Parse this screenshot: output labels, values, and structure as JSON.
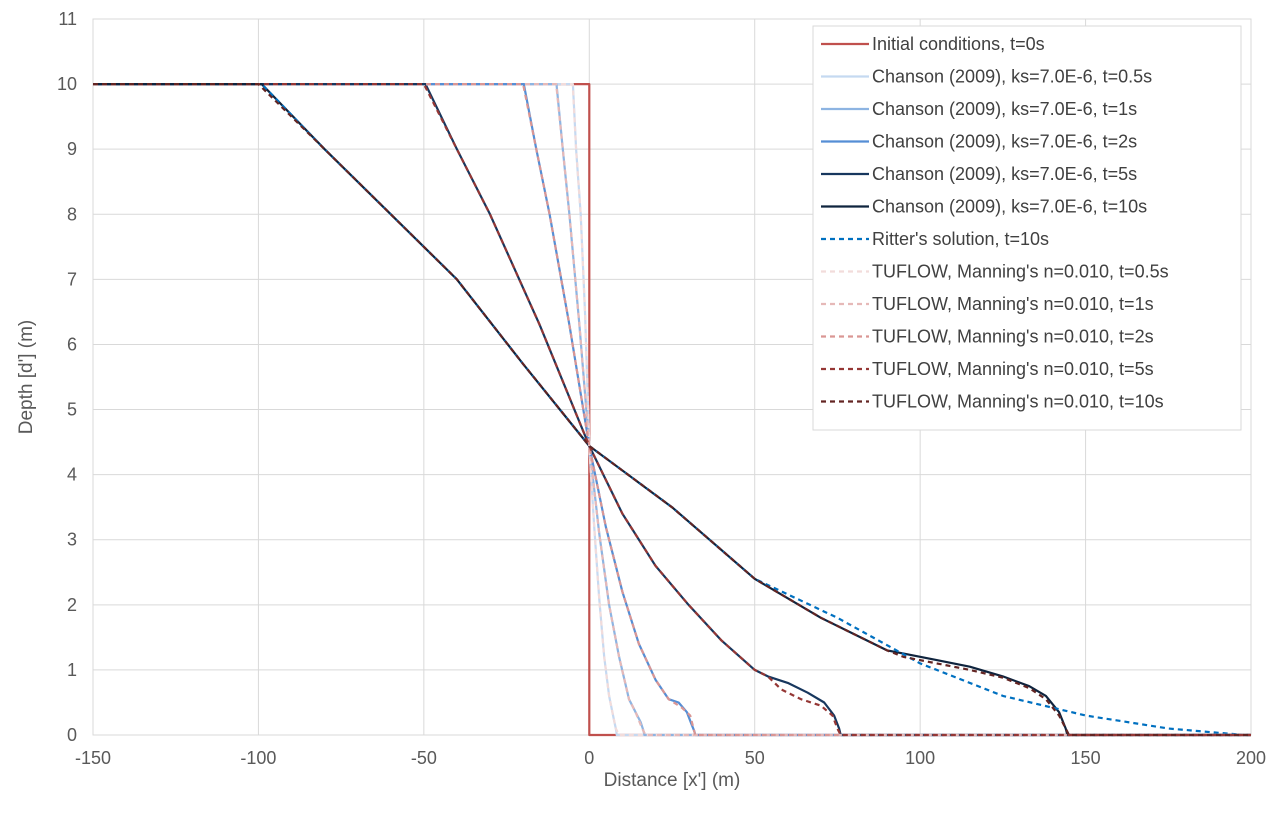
{
  "chart_data": {
    "type": "line",
    "title": "",
    "xlabel": "Distance [x'] (m)",
    "ylabel": "Depth [d'] (m)",
    "xlim": [
      -150,
      200
    ],
    "ylim": [
      0,
      11
    ],
    "xticks": [
      -150,
      -100,
      -50,
      0,
      50,
      100,
      150,
      200
    ],
    "yticks": [
      0,
      1,
      2,
      3,
      4,
      5,
      6,
      7,
      8,
      9,
      10,
      11
    ],
    "grid": true,
    "legend_position": "top-right",
    "series": [
      {
        "name": "Initial conditions, t=0s",
        "color": "#c0504d",
        "dash": "solid",
        "x": [
          -150,
          0,
          0,
          200
        ],
        "y": [
          10,
          10,
          0,
          0
        ]
      },
      {
        "name": "Chanson (2009), ks=7.0E-6, t=0.5s",
        "color": "#c5d9f1",
        "dash": "solid",
        "x": [
          -150,
          -4.95,
          -4,
          -2.6,
          -1.3,
          0,
          1.5,
          3,
          4.5,
          6,
          7,
          7.6,
          8,
          8.2,
          8.3,
          200
        ],
        "y": [
          10,
          10,
          9,
          8,
          6.5,
          4.44,
          3.2,
          2.1,
          1.2,
          0.6,
          0.35,
          0.2,
          0.1,
          0.05,
          0,
          0
        ]
      },
      {
        "name": "Chanson (2009), ks=7.0E-6, t=1s",
        "color": "#8db4e2",
        "dash": "solid",
        "x": [
          -150,
          -9.9,
          -8,
          -6,
          -3,
          0,
          3,
          6,
          9,
          12,
          14,
          15.5,
          16.3,
          16.7,
          200
        ],
        "y": [
          10,
          10,
          9,
          8,
          6.3,
          4.44,
          3.1,
          2,
          1.2,
          0.55,
          0.35,
          0.2,
          0.08,
          0,
          0
        ]
      },
      {
        "name": "Chanson (2009), ks=7.0E-6, t=2s",
        "color": "#558ed5",
        "dash": "solid",
        "x": [
          -150,
          -19.8,
          -16,
          -12,
          -6,
          0,
          5,
          10,
          15,
          20,
          24,
          27,
          29.5,
          31,
          31.8,
          32,
          200
        ],
        "y": [
          10,
          10,
          9,
          8,
          6.3,
          4.44,
          3.2,
          2.2,
          1.4,
          0.85,
          0.55,
          0.5,
          0.35,
          0.15,
          0.05,
          0,
          0
        ]
      },
      {
        "name": "Chanson (2009), ks=7.0E-6, t=5s",
        "color": "#17375e",
        "dash": "solid",
        "x": [
          -150,
          -49.5,
          -40,
          -30,
          -15,
          0,
          10,
          20,
          30,
          40,
          50,
          54,
          60,
          66,
          71,
          74,
          75.5,
          76,
          200
        ],
        "y": [
          10,
          10,
          9,
          8,
          6.3,
          4.44,
          3.4,
          2.6,
          2,
          1.45,
          1,
          0.9,
          0.8,
          0.65,
          0.5,
          0.3,
          0.1,
          0,
          0
        ]
      },
      {
        "name": "Chanson (2009), ks=7.0E-6, t=10s",
        "color": "#0f243e",
        "dash": "solid",
        "x": [
          -150,
          -99,
          -80,
          -60,
          -40,
          -20,
          0,
          25,
          50,
          70,
          90,
          95,
          105,
          115,
          125,
          133,
          138,
          142,
          144,
          144.5,
          200
        ],
        "y": [
          10,
          10,
          9,
          8,
          7,
          5.7,
          4.44,
          3.5,
          2.4,
          1.8,
          1.3,
          1.25,
          1.15,
          1.05,
          0.9,
          0.75,
          0.6,
          0.35,
          0.1,
          0,
          0
        ]
      },
      {
        "name": "Ritter's solution, t=10s",
        "color": "#0070c0",
        "dash": "dashed",
        "x": [
          -150,
          -99,
          -80,
          -60,
          -40,
          -20,
          0,
          25,
          50,
          75,
          100,
          125,
          150,
          175,
          198
        ],
        "y": [
          10,
          10,
          9,
          8,
          7,
          5.7,
          4.44,
          3.5,
          2.4,
          1.8,
          1.1,
          0.6,
          0.3,
          0.1,
          0
        ]
      },
      {
        "name": "TUFLOW, Manning's n=0.010, t=0.5s",
        "color": "#f2dcdb",
        "dash": "dashed",
        "x": [
          -150,
          -5,
          -4,
          -2.6,
          -1.3,
          0,
          1.5,
          3,
          4.5,
          6,
          7,
          8,
          9,
          200
        ],
        "y": [
          10,
          10,
          9,
          8,
          6.5,
          4.44,
          3.2,
          2.1,
          1.2,
          0.6,
          0.35,
          0.1,
          0,
          0
        ]
      },
      {
        "name": "TUFLOW, Manning's n=0.010, t=1s",
        "color": "#e6b9b8",
        "dash": "dashed",
        "x": [
          -150,
          -10,
          -8,
          -6,
          -3,
          0,
          3,
          6,
          9,
          12,
          14,
          16,
          17,
          200
        ],
        "y": [
          10,
          10,
          9,
          8,
          6.3,
          4.44,
          3.1,
          2,
          1.2,
          0.55,
          0.35,
          0.1,
          0,
          0
        ]
      },
      {
        "name": "TUFLOW, Manning's n=0.010, t=2s",
        "color": "#da9694",
        "dash": "dashed",
        "x": [
          -150,
          -20,
          -16,
          -12,
          -6,
          0,
          5,
          10,
          15,
          20,
          24,
          28,
          30.5,
          32,
          200
        ],
        "y": [
          10,
          10,
          9,
          8,
          6.3,
          4.44,
          3.2,
          2.2,
          1.4,
          0.85,
          0.55,
          0.42,
          0.3,
          0,
          0
        ]
      },
      {
        "name": "TUFLOW, Manning's n=0.010, t=5s",
        "color": "#953735",
        "dash": "dashed",
        "x": [
          -150,
          -50,
          -40,
          -30,
          -15,
          0,
          10,
          20,
          30,
          40,
          50,
          54,
          58,
          64,
          70,
          73.5,
          75,
          76,
          200
        ],
        "y": [
          10,
          10,
          9,
          8,
          6.3,
          4.44,
          3.4,
          2.6,
          2,
          1.45,
          1,
          0.9,
          0.7,
          0.55,
          0.45,
          0.3,
          0.1,
          0,
          0
        ]
      },
      {
        "name": "TUFLOW, Manning's n=0.010, t=10s",
        "color": "#632523",
        "dash": "dashed",
        "x": [
          -150,
          -100,
          -80,
          -60,
          -40,
          -20,
          0,
          25,
          50,
          70,
          90,
          95,
          105,
          115,
          125,
          133,
          138,
          142,
          144,
          145,
          200
        ],
        "y": [
          10,
          10,
          9,
          8,
          7,
          5.7,
          4.44,
          3.5,
          2.4,
          1.8,
          1.3,
          1.2,
          1.1,
          1,
          0.88,
          0.72,
          0.55,
          0.3,
          0.1,
          0,
          0
        ]
      }
    ]
  }
}
